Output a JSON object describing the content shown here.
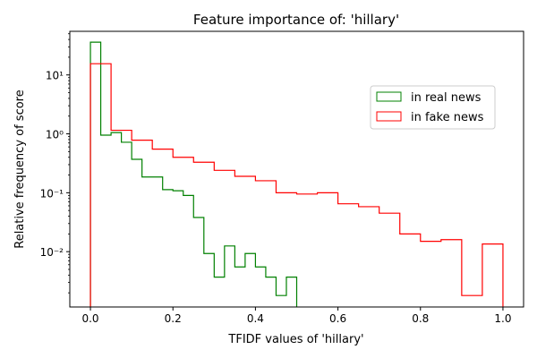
{
  "chart_data": {
    "type": "histogram",
    "title": "Feature importance of: 'hillary'",
    "xlabel": "TFIDF values of 'hillary'",
    "ylabel": "Relative frequency of score",
    "xlim": [
      -0.05,
      1.05
    ],
    "ylim": [
      0.00115,
      55
    ],
    "y_scale": "log",
    "grid": false,
    "legend_position": "upper-right",
    "x_ticks": [
      0.0,
      0.2,
      0.4,
      0.6,
      0.8,
      1.0
    ],
    "x_tick_labels": [
      "0.0",
      "0.2",
      "0.4",
      "0.6",
      "0.8",
      "1.0"
    ],
    "y_ticks": [
      0.01,
      0.1,
      1,
      10
    ],
    "y_tick_labels": [
      "10⁻²",
      "10⁻¹",
      "10⁰",
      "10¹"
    ],
    "series": [
      {
        "name": "in real news",
        "color": "#008000",
        "bin_edges": [
          0.0,
          0.025,
          0.05,
          0.075,
          0.1,
          0.125,
          0.15,
          0.175,
          0.2,
          0.225,
          0.25,
          0.275,
          0.3,
          0.325,
          0.35,
          0.375,
          0.4,
          0.425,
          0.45,
          0.475,
          0.5
        ],
        "values": [
          36.0,
          0.95,
          1.05,
          0.72,
          0.37,
          0.185,
          0.185,
          0.113,
          0.108,
          0.09,
          0.038,
          0.0093,
          0.0037,
          0.0125,
          0.0055,
          0.0093,
          0.0055,
          0.0037,
          0.0018,
          0.0037
        ]
      },
      {
        "name": "in fake news",
        "color": "#ff0000",
        "bin_edges": [
          0.0,
          0.05,
          0.1,
          0.15,
          0.2,
          0.25,
          0.3,
          0.35,
          0.4,
          0.45,
          0.5,
          0.55,
          0.6,
          0.65,
          0.7,
          0.75,
          0.8,
          0.85,
          0.9,
          0.95,
          1.0
        ],
        "values": [
          15.5,
          1.15,
          0.78,
          0.55,
          0.4,
          0.33,
          0.24,
          0.19,
          0.16,
          0.1,
          0.095,
          0.1,
          0.065,
          0.058,
          0.045,
          0.02,
          0.015,
          0.016,
          0.0018,
          0.0135
        ]
      }
    ]
  }
}
